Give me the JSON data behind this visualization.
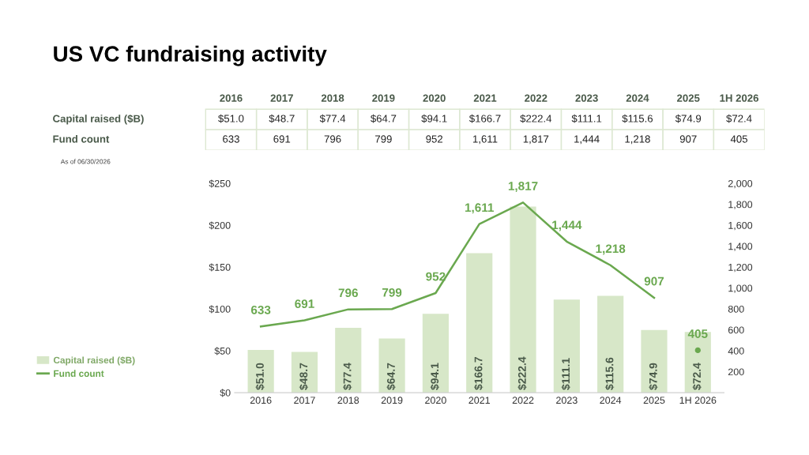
{
  "chart_data": {
    "type": "bar",
    "title": "US VC fundraising activity",
    "categories": [
      "2016",
      "2017",
      "2018",
      "2019",
      "2020",
      "2021",
      "2022",
      "2023",
      "2024",
      "2025",
      "1H 2026"
    ],
    "series": [
      {
        "name": "Capital raised ($B)",
        "color": "#d7e7c8",
        "values": [
          51.0,
          48.7,
          77.4,
          64.7,
          94.1,
          166.7,
          222.4,
          111.1,
          115.6,
          74.9,
          72.4
        ],
        "value_labels": [
          "$51.0",
          "$48.7",
          "$77.4",
          "$64.7",
          "$94.1",
          "$166.7",
          "$222.4",
          "$111.1",
          "$115.6",
          "$74.9",
          "$72.4"
        ]
      },
      {
        "name": "Fund count",
        "type": "line",
        "axis": "y2",
        "color": "#6aa84f",
        "values": [
          633,
          691,
          796,
          799,
          952,
          1611,
          1817,
          1444,
          1218,
          907,
          null
        ],
        "value_labels": [
          "633",
          "691",
          "796",
          "799",
          "952",
          "1,611",
          "1,817",
          "1,444",
          "1,218",
          "907",
          null
        ]
      },
      {
        "type": "scatter",
        "axis": "y2",
        "color": "#6aa84f",
        "values": [
          null,
          null,
          null,
          null,
          null,
          null,
          null,
          null,
          null,
          null,
          405
        ],
        "value_labels": [
          null,
          null,
          null,
          null,
          null,
          null,
          null,
          null,
          null,
          null,
          "405"
        ]
      }
    ],
    "ylim": [
      0,
      250
    ],
    "yticks": [
      {
        "value": 0,
        "label": "$0"
      },
      {
        "value": 50,
        "label": "$50"
      },
      {
        "value": 100,
        "label": "$100"
      },
      {
        "value": 150,
        "label": "$150"
      },
      {
        "value": 200,
        "label": "$200"
      },
      {
        "value": 250,
        "label": "$250"
      }
    ],
    "y2lim": [
      0,
      2000
    ],
    "y2ticks": [
      200,
      400,
      600,
      800,
      {
        "value": 1000,
        "label": "1,000"
      },
      {
        "value": 1200,
        "label": "1,200"
      },
      {
        "value": 1400,
        "label": "1,400"
      },
      {
        "value": 1600,
        "label": "1,600"
      },
      {
        "value": 1800,
        "label": "1,800"
      },
      {
        "value": 2000,
        "label": "2,000"
      }
    ],
    "grid": false,
    "legend": "left",
    "annotations": [
      "As of 06/30/2026"
    ]
  }
}
